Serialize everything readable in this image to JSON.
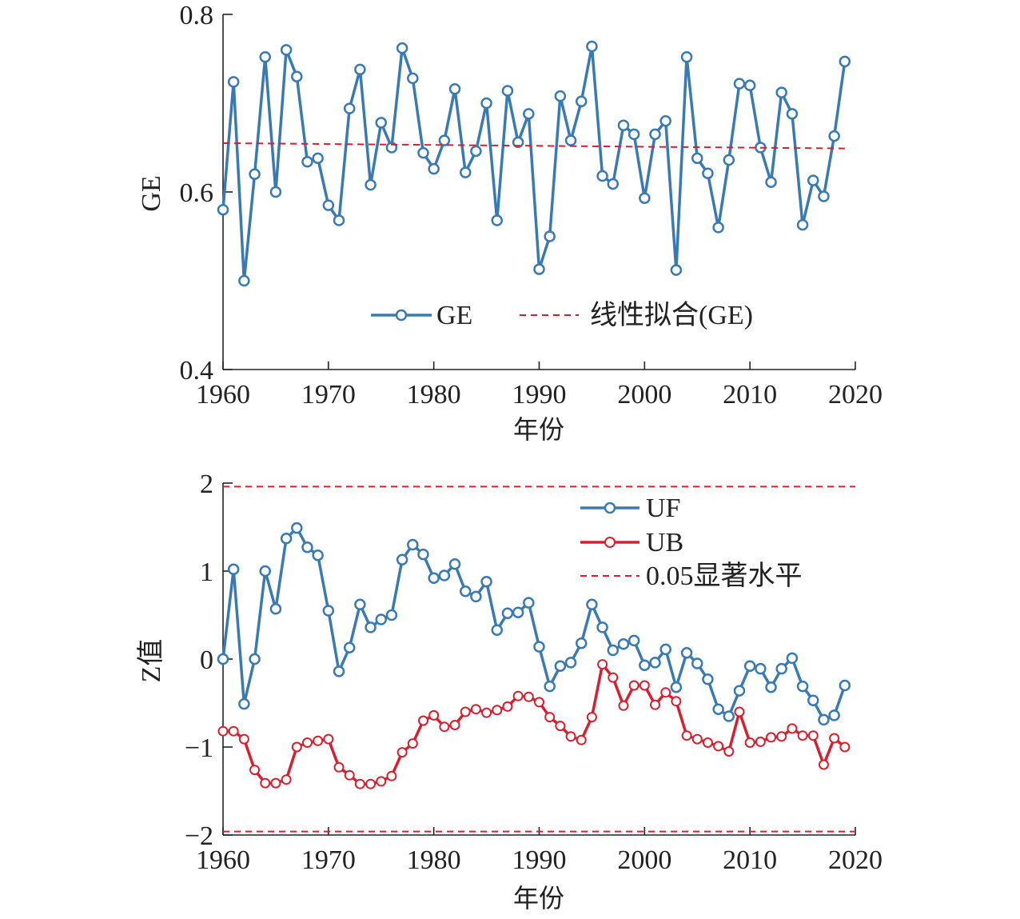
{
  "chart_data": [
    {
      "type": "line",
      "xlabel": "年份",
      "ylabel": "GE",
      "xlim": [
        1960,
        2020
      ],
      "ylim": [
        0.4,
        0.8
      ],
      "xticks": [
        "1960",
        "1970",
        "1980",
        "1990",
        "2000",
        "2010",
        "2020"
      ],
      "yticks": [
        "0.4",
        "0.6",
        "0.8"
      ],
      "legend_position": "bottom-center",
      "x": [
        1960,
        1961,
        1962,
        1963,
        1964,
        1965,
        1966,
        1967,
        1968,
        1969,
        1970,
        1971,
        1972,
        1973,
        1974,
        1975,
        1976,
        1977,
        1978,
        1979,
        1980,
        1981,
        1982,
        1983,
        1984,
        1985,
        1986,
        1987,
        1988,
        1989,
        1990,
        1991,
        1992,
        1993,
        1994,
        1995,
        1996,
        1997,
        1998,
        1999,
        2000,
        2001,
        2002,
        2003,
        2004,
        2005,
        2006,
        2007,
        2008,
        2009,
        2010,
        2011,
        2012,
        2013,
        2014,
        2015,
        2016,
        2017,
        2018,
        2019
      ],
      "series": [
        {
          "name": "GE",
          "color": "#3a7ab2",
          "marker": "circle",
          "values": [
            0.58,
            0.724,
            0.5,
            0.62,
            0.752,
            0.6,
            0.76,
            0.73,
            0.634,
            0.638,
            0.585,
            0.568,
            0.694,
            0.738,
            0.608,
            0.678,
            0.65,
            0.762,
            0.728,
            0.644,
            0.626,
            0.658,
            0.716,
            0.622,
            0.646,
            0.7,
            0.568,
            0.714,
            0.656,
            0.688,
            0.513,
            0.55,
            0.708,
            0.658,
            0.702,
            0.764,
            0.618,
            0.609,
            0.675,
            0.665,
            0.593,
            0.665,
            0.68,
            0.512,
            0.752,
            0.638,
            0.621,
            0.56,
            0.636,
            0.722,
            0.72,
            0.65,
            0.611,
            0.712,
            0.688,
            0.563,
            0.613,
            0.595,
            0.663,
            0.747
          ]
        },
        {
          "name": "线性拟合(GE)",
          "color": "#d62030",
          "style": "dashed",
          "x": [
            1960,
            2019
          ],
          "values": [
            0.655,
            0.649
          ]
        }
      ]
    },
    {
      "type": "line",
      "xlabel": "年份",
      "ylabel": "Z值",
      "xlim": [
        1960,
        2020
      ],
      "ylim": [
        -2,
        2
      ],
      "xticks": [
        "1960",
        "1970",
        "1980",
        "1990",
        "2000",
        "2010",
        "2020"
      ],
      "yticks": [
        "−2",
        "−1",
        "0",
        "1",
        "2"
      ],
      "legend_position": "top-right",
      "x": [
        1960,
        1961,
        1962,
        1963,
        1964,
        1965,
        1966,
        1967,
        1968,
        1969,
        1970,
        1971,
        1972,
        1973,
        1974,
        1975,
        1976,
        1977,
        1978,
        1979,
        1980,
        1981,
        1982,
        1983,
        1984,
        1985,
        1986,
        1987,
        1988,
        1989,
        1990,
        1991,
        1992,
        1993,
        1994,
        1995,
        1996,
        1997,
        1998,
        1999,
        2000,
        2001,
        2002,
        2003,
        2004,
        2005,
        2006,
        2007,
        2008,
        2009,
        2010,
        2011,
        2012,
        2013,
        2014,
        2015,
        2016,
        2017,
        2018,
        2019
      ],
      "series": [
        {
          "name": "UF",
          "color": "#3a7ab2",
          "marker": "circle",
          "values": [
            0.0,
            1.02,
            -0.51,
            0.0,
            1.0,
            0.57,
            1.37,
            1.49,
            1.27,
            1.18,
            0.55,
            -0.14,
            0.13,
            0.62,
            0.36,
            0.45,
            0.5,
            1.13,
            1.3,
            1.19,
            0.92,
            0.95,
            1.08,
            0.77,
            0.71,
            0.88,
            0.33,
            0.52,
            0.53,
            0.64,
            0.14,
            -0.31,
            -0.08,
            -0.04,
            0.18,
            0.62,
            0.36,
            0.1,
            0.17,
            0.21,
            -0.07,
            -0.04,
            0.11,
            -0.32,
            0.07,
            -0.05,
            -0.23,
            -0.57,
            -0.65,
            -0.36,
            -0.08,
            -0.11,
            -0.32,
            -0.11,
            0.01,
            -0.31,
            -0.47,
            -0.69,
            -0.64,
            -0.3
          ]
        },
        {
          "name": "UB",
          "color": "#d62030",
          "marker": "circle-open",
          "values": [
            -0.82,
            -0.82,
            -0.91,
            -1.26,
            -1.41,
            -1.41,
            -1.37,
            -1.0,
            -0.95,
            -0.93,
            -0.91,
            -1.23,
            -1.32,
            -1.42,
            -1.42,
            -1.39,
            -1.33,
            -1.06,
            -0.96,
            -0.7,
            -0.64,
            -0.77,
            -0.75,
            -0.6,
            -0.57,
            -0.61,
            -0.58,
            -0.54,
            -0.42,
            -0.43,
            -0.49,
            -0.66,
            -0.76,
            -0.88,
            -0.92,
            -0.66,
            -0.06,
            -0.21,
            -0.53,
            -0.3,
            -0.3,
            -0.52,
            -0.38,
            -0.48,
            -0.87,
            -0.91,
            -0.95,
            -0.99,
            -1.05,
            -0.6,
            -0.95,
            -0.94,
            -0.89,
            -0.88,
            -0.79,
            -0.87,
            -0.87,
            -1.2,
            -0.9,
            -1.0
          ]
        },
        {
          "name": "0.05显著水平",
          "color": "#d62030",
          "style": "dashed",
          "levels": [
            1.96,
            -1.96
          ]
        }
      ]
    }
  ]
}
